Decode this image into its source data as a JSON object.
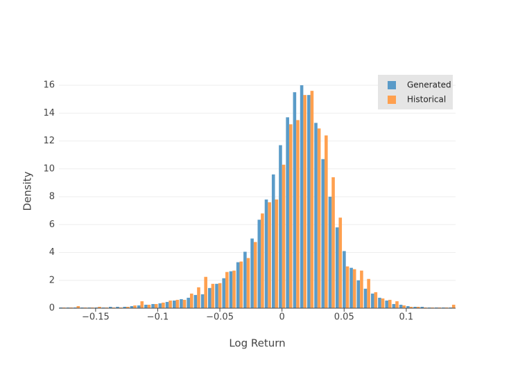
{
  "chart_data": {
    "type": "histogram",
    "xlabel": "Log Return",
    "ylabel": "Density",
    "bins": [
      -0.1795,
      -0.1738,
      -0.1681,
      -0.1624,
      -0.1567,
      -0.151,
      -0.1453,
      -0.1396,
      -0.1339,
      -0.1282,
      -0.1225,
      -0.1168,
      -0.1111,
      -0.1054,
      -0.0997,
      -0.094,
      -0.0883,
      -0.0826,
      -0.0769,
      -0.0712,
      -0.0655,
      -0.0598,
      -0.0541,
      -0.0484,
      -0.0427,
      -0.037,
      -0.0313,
      -0.0256,
      -0.0199,
      -0.0142,
      -0.0085,
      -0.0028,
      0.0029,
      0.0086,
      0.0143,
      0.02,
      0.0257,
      0.0314,
      0.0371,
      0.0428,
      0.0485,
      0.0542,
      0.0599,
      0.0656,
      0.0713,
      0.077,
      0.0827,
      0.0884,
      0.0941,
      0.0998,
      0.1055,
      0.1112,
      0.1169,
      0.1226,
      0.1283,
      0.134,
      0.1397
    ],
    "series": [
      {
        "name": "Generated",
        "color": "#5a9bc8",
        "values": [
          0.05,
          0.05,
          0.05,
          0.05,
          0.05,
          0.05,
          0.05,
          0.1,
          0.1,
          0.1,
          0.15,
          0.2,
          0.25,
          0.3,
          0.35,
          0.45,
          0.55,
          0.65,
          0.75,
          0.95,
          1.0,
          1.45,
          1.75,
          2.15,
          2.65,
          3.3,
          4.05,
          5.0,
          6.35,
          7.8,
          9.6,
          11.7,
          13.7,
          15.5,
          16.0,
          15.3,
          13.3,
          10.7,
          8.0,
          5.8,
          4.1,
          2.9,
          2.0,
          1.4,
          1.05,
          0.75,
          0.55,
          0.3,
          0.25,
          0.15,
          0.1,
          0.1,
          0.05,
          0.05,
          0.05,
          0.05
        ]
      },
      {
        "name": "Historical",
        "color": "#ffa04f",
        "values": [
          0.05,
          0.05,
          0.15,
          0.05,
          0.05,
          0.1,
          0.05,
          0.05,
          0.05,
          0.1,
          0.2,
          0.5,
          0.25,
          0.3,
          0.4,
          0.55,
          0.6,
          0.6,
          1.05,
          1.5,
          2.25,
          1.75,
          1.8,
          2.6,
          2.7,
          3.35,
          3.6,
          4.75,
          6.8,
          7.6,
          7.8,
          10.3,
          13.2,
          13.5,
          15.3,
          15.6,
          12.9,
          12.4,
          9.4,
          6.5,
          3.0,
          2.8,
          2.7,
          2.1,
          1.15,
          0.7,
          0.6,
          0.5,
          0.2,
          0.1,
          0.1,
          0.05,
          0.05,
          0.05,
          0.05,
          0.25
        ]
      }
    ],
    "xlim": [
      -0.1795,
      0.1397
    ],
    "xticks": [
      {
        "value": -0.15,
        "label": "−0.15"
      },
      {
        "value": -0.1,
        "label": "−0.1"
      },
      {
        "value": -0.05,
        "label": "−0.05"
      },
      0,
      0.05,
      0.1
    ],
    "ylim": [
      0,
      16.8
    ],
    "yticks": [
      0,
      2,
      4,
      6,
      8,
      10,
      12,
      14,
      16
    ],
    "grid": true,
    "legend": "top-right"
  }
}
